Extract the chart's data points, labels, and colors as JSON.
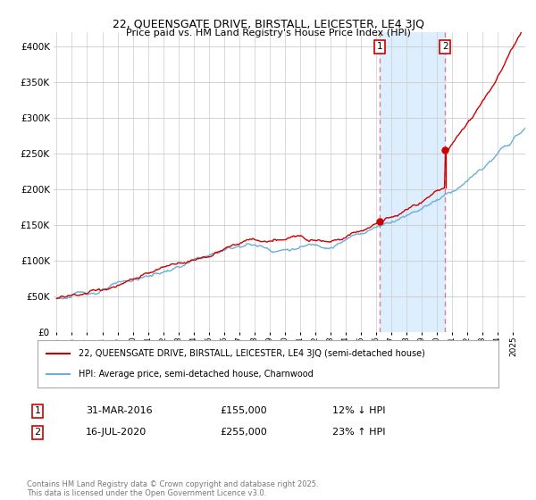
{
  "title": "22, QUEENSGATE DRIVE, BIRSTALL, LEICESTER, LE4 3JQ",
  "subtitle": "Price paid vs. HM Land Registry's House Price Index (HPI)",
  "legend_line1": "22, QUEENSGATE DRIVE, BIRSTALL, LEICESTER, LE4 3JQ (semi-detached house)",
  "legend_line2": "HPI: Average price, semi-detached house, Charnwood",
  "annotation1": {
    "num": "1",
    "date": "31-MAR-2016",
    "price": "£155,000",
    "pct": "12% ↓ HPI"
  },
  "annotation2": {
    "num": "2",
    "date": "16-JUL-2020",
    "price": "£255,000",
    "pct": "23% ↑ HPI"
  },
  "footnote": "Contains HM Land Registry data © Crown copyright and database right 2025.\nThis data is licensed under the Open Government Licence v3.0.",
  "red_color": "#cc0000",
  "blue_color": "#6baed6",
  "shade_color": "#ddeeff",
  "vline_color": "#e08080",
  "background_color": "#ffffff",
  "ylim_min": 0,
  "ylim_max": 420000,
  "sale1_x": 2016.25,
  "sale2_x": 2020.54,
  "sale1_price": 155000,
  "sale2_price": 255000,
  "xmin": 1994.8,
  "xmax": 2025.8
}
